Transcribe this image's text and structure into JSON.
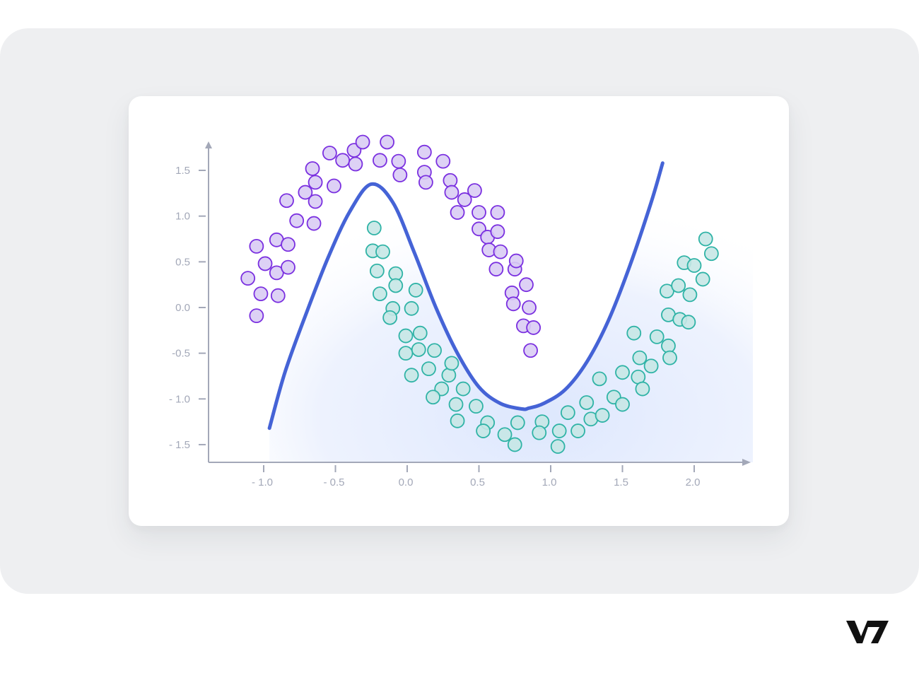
{
  "brand": {
    "logo_text": "V7",
    "logo_color": "#111111"
  },
  "colors": {
    "background": "#eeeff1",
    "card": "#ffffff",
    "axis": "#a3a8b8",
    "boundary": "#4563d6",
    "class_a_fill": "#d9ccf4",
    "class_a_stroke": "#7a2fe0",
    "class_b_fill": "#c7e7e6",
    "class_b_stroke": "#2fb3a6",
    "region_fill": "#e3ecfd"
  },
  "chart_data": {
    "type": "scatter",
    "title": "",
    "xlabel": "",
    "ylabel": "",
    "xlim": [
      -1.4,
      2.4
    ],
    "ylim": [
      -1.7,
      1.8
    ],
    "grid": false,
    "legend": null,
    "x_ticks": [
      -1.0,
      -0.5,
      0.0,
      0.5,
      1.0,
      1.5,
      2.0
    ],
    "x_tick_labels": [
      "- 1.0",
      "- 0.5",
      "0.0",
      "0.5",
      "1.0",
      "1.5",
      "2.0"
    ],
    "y_ticks": [
      1.5,
      1.0,
      0.5,
      0.0,
      -0.5,
      -1.0,
      -1.5
    ],
    "y_tick_labels": [
      "1.5",
      "1.0",
      "0.5",
      "0.0",
      "-0.5",
      "- 1.0",
      "- 1.5"
    ],
    "series": [
      {
        "name": "class_a_purple",
        "points": [
          [
            -1.11,
            0.32
          ],
          [
            -1.05,
            0.67
          ],
          [
            -1.05,
            -0.09
          ],
          [
            -1.02,
            0.15
          ],
          [
            -0.99,
            0.48
          ],
          [
            -0.91,
            0.74
          ],
          [
            -0.91,
            0.38
          ],
          [
            -0.9,
            0.13
          ],
          [
            -0.83,
            0.69
          ],
          [
            -0.83,
            0.44
          ],
          [
            -0.84,
            1.17
          ],
          [
            -0.77,
            0.95
          ],
          [
            -0.71,
            1.26
          ],
          [
            -0.66,
            1.52
          ],
          [
            -0.64,
            1.37
          ],
          [
            -0.64,
            1.16
          ],
          [
            -0.65,
            0.92
          ],
          [
            -0.51,
            1.33
          ],
          [
            -0.54,
            1.69
          ],
          [
            -0.45,
            1.61
          ],
          [
            -0.37,
            1.72
          ],
          [
            -0.36,
            1.57
          ],
          [
            -0.31,
            1.81
          ],
          [
            -0.19,
            1.61
          ],
          [
            -0.14,
            1.81
          ],
          [
            -0.06,
            1.6
          ],
          [
            -0.05,
            1.45
          ],
          [
            0.12,
            1.7
          ],
          [
            0.12,
            1.48
          ],
          [
            0.13,
            1.37
          ],
          [
            0.25,
            1.6
          ],
          [
            0.3,
            1.39
          ],
          [
            0.31,
            1.26
          ],
          [
            0.35,
            1.04
          ],
          [
            0.4,
            1.18
          ],
          [
            0.47,
            1.28
          ],
          [
            0.5,
            0.86
          ],
          [
            0.5,
            1.04
          ],
          [
            0.56,
            0.77
          ],
          [
            0.57,
            0.63
          ],
          [
            0.62,
            0.42
          ],
          [
            0.63,
            1.04
          ],
          [
            0.63,
            0.83
          ],
          [
            0.65,
            0.61
          ],
          [
            0.73,
            0.16
          ],
          [
            0.74,
            0.04
          ],
          [
            0.75,
            0.42
          ],
          [
            0.76,
            0.51
          ],
          [
            0.81,
            -0.2
          ],
          [
            0.83,
            0.25
          ],
          [
            0.85,
            0.0
          ],
          [
            0.88,
            -0.22
          ],
          [
            0.86,
            -0.47
          ]
        ]
      },
      {
        "name": "class_b_teal",
        "points": [
          [
            -0.23,
            0.87
          ],
          [
            -0.24,
            0.62
          ],
          [
            -0.17,
            0.61
          ],
          [
            -0.21,
            0.4
          ],
          [
            -0.19,
            0.15
          ],
          [
            -0.08,
            0.37
          ],
          [
            -0.08,
            0.24
          ],
          [
            -0.1,
            -0.01
          ],
          [
            -0.12,
            -0.11
          ],
          [
            0.03,
            -0.01
          ],
          [
            0.06,
            0.19
          ],
          [
            -0.01,
            -0.31
          ],
          [
            0.09,
            -0.28
          ],
          [
            -0.01,
            -0.5
          ],
          [
            0.08,
            -0.46
          ],
          [
            0.03,
            -0.74
          ],
          [
            0.15,
            -0.67
          ],
          [
            0.19,
            -0.47
          ],
          [
            0.29,
            -0.74
          ],
          [
            0.31,
            -0.61
          ],
          [
            0.24,
            -0.89
          ],
          [
            0.18,
            -0.98
          ],
          [
            0.39,
            -0.89
          ],
          [
            0.34,
            -1.06
          ],
          [
            0.35,
            -1.24
          ],
          [
            0.48,
            -1.08
          ],
          [
            0.56,
            -1.26
          ],
          [
            0.53,
            -1.35
          ],
          [
            0.68,
            -1.39
          ],
          [
            0.75,
            -1.5
          ],
          [
            0.77,
            -1.26
          ],
          [
            0.94,
            -1.25
          ],
          [
            0.92,
            -1.37
          ],
          [
            1.06,
            -1.35
          ],
          [
            1.05,
            -1.52
          ],
          [
            1.12,
            -1.15
          ],
          [
            1.19,
            -1.35
          ],
          [
            1.25,
            -1.04
          ],
          [
            1.28,
            -1.22
          ],
          [
            1.34,
            -0.78
          ],
          [
            1.36,
            -1.18
          ],
          [
            1.44,
            -0.98
          ],
          [
            1.5,
            -0.71
          ],
          [
            1.5,
            -1.06
          ],
          [
            1.58,
            -0.28
          ],
          [
            1.61,
            -0.76
          ],
          [
            1.62,
            -0.55
          ],
          [
            1.64,
            -0.89
          ],
          [
            1.7,
            -0.64
          ],
          [
            1.74,
            -0.32
          ],
          [
            1.81,
            0.18
          ],
          [
            1.82,
            -0.08
          ],
          [
            1.82,
            -0.42
          ],
          [
            1.83,
            -0.55
          ],
          [
            1.89,
            0.24
          ],
          [
            1.9,
            -0.13
          ],
          [
            1.93,
            0.49
          ],
          [
            1.97,
            0.14
          ],
          [
            1.96,
            -0.16
          ],
          [
            2.0,
            0.46
          ],
          [
            2.06,
            0.31
          ],
          [
            2.08,
            0.75
          ],
          [
            2.12,
            0.59
          ]
        ]
      }
    ],
    "decision_boundary": {
      "type": "line",
      "x": [
        -0.96,
        -0.85,
        -0.7,
        -0.55,
        -0.4,
        -0.25,
        -0.1,
        0.05,
        0.2,
        0.35,
        0.5,
        0.65,
        0.8,
        0.85,
        0.95,
        1.1,
        1.25,
        1.4,
        1.55,
        1.7,
        1.78
      ],
      "y": [
        -1.32,
        -0.7,
        -0.05,
        0.55,
        1.05,
        1.35,
        1.15,
        0.6,
        0.0,
        -0.5,
        -0.87,
        -1.05,
        -1.11,
        -1.1,
        -1.05,
        -0.9,
        -0.6,
        -0.15,
        0.45,
        1.15,
        1.58
      ]
    }
  }
}
